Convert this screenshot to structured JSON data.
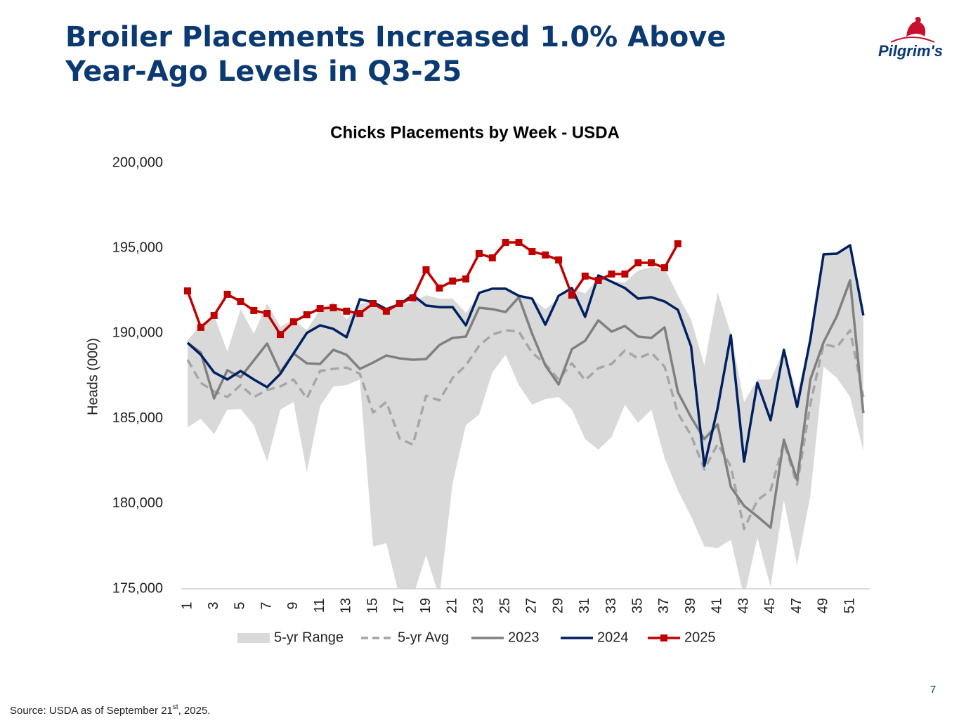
{
  "slide": {
    "title_lines": [
      "Broiler Placements Increased 1.0% Above",
      "Year-Ago Levels in Q3-25"
    ],
    "logo": "Pilgrim's",
    "page_number": "7",
    "source": {
      "prefix": "Source: USDA as of September 21",
      "sup": "st",
      "suffix": ", 2025."
    }
  },
  "chart_data": {
    "type": "line",
    "title": "Chicks Placements by Week - USDA",
    "y_label": "Heads (000)",
    "categories": [
      1,
      null,
      3,
      null,
      5,
      null,
      7,
      null,
      9,
      null,
      11,
      null,
      13,
      null,
      15,
      null,
      17,
      null,
      19,
      null,
      21,
      null,
      23,
      null,
      25,
      null,
      27,
      null,
      29,
      null,
      31,
      null,
      33,
      null,
      35,
      null,
      37,
      null,
      39,
      null,
      41,
      null,
      43,
      null,
      45,
      null,
      47,
      null,
      49,
      null,
      51,
      null
    ],
    "ylim": [
      175000,
      200000
    ],
    "yticks": [
      {
        "value": 175000,
        "label": "175,000"
      },
      {
        "value": 180000,
        "label": "180,000"
      },
      {
        "value": 185000,
        "label": "185,000"
      },
      {
        "value": 190000,
        "label": "190,000"
      },
      {
        "value": 195000,
        "label": "195,000"
      },
      {
        "value": 200000,
        "label": "200,000"
      }
    ],
    "legend": "bottom",
    "series": [
      {
        "name": "5-yr Range",
        "style": "range",
        "color": "#d9d9d9",
        "low": [
          184490,
          184980,
          184080,
          185520,
          185560,
          184610,
          182470,
          185520,
          185970,
          181850,
          185730,
          186880,
          186960,
          187290,
          177480,
          177680,
          174500,
          174500,
          176980,
          174500,
          181190,
          184610,
          185230,
          187710,
          188740,
          186960,
          185810,
          186140,
          186260,
          185520,
          183790,
          183170,
          183910,
          185810,
          184740,
          185520,
          182670,
          180780,
          179250,
          177480,
          177390,
          177890,
          174500,
          178010,
          175120,
          180200,
          176360,
          180490,
          188040,
          187380,
          186260,
          183090
        ],
        "high": [
          189600,
          190510,
          191050,
          188940,
          191420,
          189980,
          191750,
          190390,
          190800,
          190180,
          191420,
          191830,
          190800,
          191710,
          191910,
          191420,
          191710,
          191830,
          192240,
          192040,
          192040,
          191210,
          192240,
          192530,
          192620,
          192240,
          192040,
          191420,
          192040,
          192660,
          192330,
          193280,
          193070,
          192990,
          193690,
          193890,
          193810,
          192240,
          190800,
          188120,
          192410,
          189980,
          185970,
          187290,
          187290,
          189030,
          186470,
          189770,
          194720,
          194720,
          195210,
          191090
        ]
      },
      {
        "name": "5-yr Avg",
        "style": "dash",
        "color": "#a6a6a6",
        "values": [
          188450,
          187090,
          186590,
          186260,
          186960,
          186260,
          186670,
          186880,
          187290,
          186180,
          187790,
          187910,
          187990,
          187620,
          185350,
          185970,
          183830,
          183460,
          186340,
          186060,
          187380,
          188120,
          189270,
          189930,
          190180,
          190100,
          188860,
          188200,
          187290,
          188240,
          187250,
          187950,
          188200,
          188990,
          188530,
          188860,
          188040,
          185310,
          184000,
          182010,
          183500,
          182180,
          178510,
          180200,
          180780,
          183580,
          181110,
          185850,
          189360,
          189190,
          190180,
          186260
        ]
      },
      {
        "name": "2023",
        "style": "solid",
        "color": "#808080",
        "values": [
          189440,
          188860,
          186180,
          187830,
          187420,
          188410,
          189400,
          187710,
          188820,
          188240,
          188200,
          189030,
          188740,
          187910,
          188280,
          188700,
          188530,
          188450,
          188490,
          189310,
          189730,
          189810,
          191500,
          191420,
          191250,
          192120,
          189980,
          188120,
          187000,
          189070,
          189560,
          190760,
          190100,
          190430,
          189810,
          189730,
          190350,
          186550,
          185070,
          183790,
          184650,
          180980,
          179870,
          179250,
          178590,
          183750,
          181390,
          187290,
          189480,
          191010,
          193110,
          185310
        ]
      },
      {
        "name": "2024",
        "style": "solid",
        "color": "#002060",
        "values": [
          189440,
          188740,
          187710,
          187290,
          187790,
          187290,
          186840,
          187620,
          188820,
          190020,
          190470,
          190260,
          189770,
          192000,
          191830,
          191420,
          191710,
          192240,
          191630,
          191540,
          191540,
          190470,
          192370,
          192620,
          192620,
          192200,
          192040,
          190510,
          192200,
          192660,
          190970,
          193400,
          193030,
          192660,
          192040,
          192120,
          191870,
          191380,
          189230,
          182220,
          185600,
          189890,
          182470,
          187090,
          184900,
          189030,
          185680,
          189640,
          194640,
          194680,
          195170,
          191050
        ]
      },
      {
        "name": "2025",
        "style": "solid",
        "marker": "square",
        "color": "#c00000",
        "values": [
          192490,
          190350,
          191050,
          192290,
          191870,
          191340,
          191170,
          189930,
          190680,
          191090,
          191460,
          191500,
          191300,
          191170,
          191750,
          191300,
          191750,
          192080,
          193730,
          192660,
          193070,
          193190,
          194680,
          194430,
          195340,
          195340,
          194800,
          194600,
          194310,
          192240,
          193360,
          193110,
          193480,
          193480,
          194140,
          194140,
          193850,
          195260,
          null,
          null,
          null,
          null,
          null,
          null,
          null,
          null,
          null,
          null,
          null,
          null,
          null,
          null
        ]
      }
    ]
  }
}
